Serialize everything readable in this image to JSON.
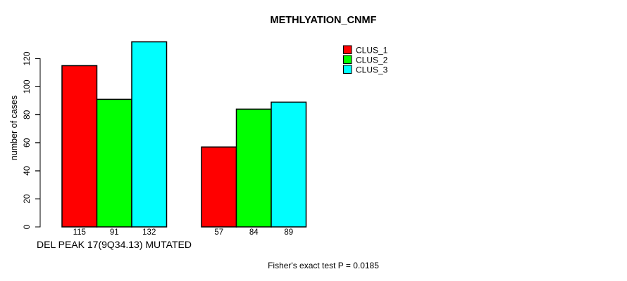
{
  "chart_data": {
    "type": "bar",
    "title": "METHLYATION_CNMF",
    "ylabel": "number of cases",
    "xlabel": "DEL PEAK 17(9Q34.13) MUTATED",
    "annotation": "Fisher's exact test P = 0.0185",
    "series": [
      {
        "name": "CLUS_1",
        "color": "#ff0000",
        "values": [
          115,
          57
        ]
      },
      {
        "name": "CLUS_2",
        "color": "#00ff00",
        "values": [
          91,
          84
        ]
      },
      {
        "name": "CLUS_3",
        "color": "#00ffff",
        "values": [
          132,
          89
        ]
      }
    ],
    "yticks": [
      0,
      20,
      40,
      60,
      80,
      100,
      120
    ],
    "ylim": [
      0,
      132
    ],
    "grid": false,
    "legend_position": "top-right",
    "bar_value_labels_shown": true,
    "axis_color": "#000000",
    "text_color": "#000000",
    "background_color": "#ffffff"
  }
}
